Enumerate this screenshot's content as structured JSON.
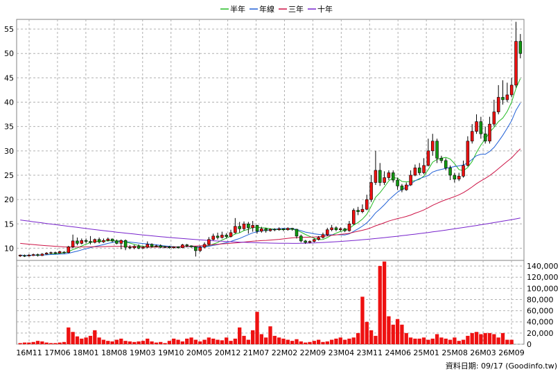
{
  "chart_data": {
    "type": "candlestick",
    "legend": [
      {
        "name": "半年",
        "color": "#22bb22"
      },
      {
        "name": "年線",
        "color": "#1f5fd6"
      },
      {
        "name": "三年",
        "color": "#cc1144"
      },
      {
        "name": "十年",
        "color": "#7722cc"
      }
    ],
    "x_ticks": [
      "16M11",
      "17M06",
      "18M01",
      "18M08",
      "19M03",
      "19M10",
      "20M05",
      "20M12",
      "21M07",
      "22M02",
      "22M09",
      "23M04",
      "23M11",
      "24M06",
      "25M01",
      "25M08",
      "26M03",
      "26M09"
    ],
    "price_axis": {
      "ticks": [
        10,
        15,
        20,
        25,
        30,
        35,
        40,
        45,
        50,
        55
      ],
      "ylim": [
        7.5,
        57
      ]
    },
    "volume_axis": {
      "ticks": [
        "0",
        "20,000",
        "40,000",
        "60,000",
        "80,000",
        "100,000",
        "120,000",
        "140,000"
      ],
      "ylim": [
        0,
        150000
      ]
    },
    "candles": [
      [
        8.4,
        8.6,
        8.2,
        8.7
      ],
      [
        8.5,
        8.4,
        8.2,
        8.7
      ],
      [
        8.4,
        8.6,
        8.3,
        8.8
      ],
      [
        8.5,
        8.7,
        8.4,
        8.9
      ],
      [
        8.7,
        8.5,
        8.3,
        8.9
      ],
      [
        8.5,
        8.8,
        8.4,
        9.0
      ],
      [
        8.8,
        9.0,
        8.7,
        9.2
      ],
      [
        9.0,
        9.1,
        8.8,
        9.3
      ],
      [
        9.1,
        9.0,
        8.8,
        9.3
      ],
      [
        9.0,
        9.3,
        8.9,
        9.5
      ],
      [
        9.2,
        9.1,
        8.9,
        9.4
      ],
      [
        9.1,
        10.3,
        9.0,
        10.5
      ],
      [
        10.3,
        11.5,
        10.0,
        12.8
      ],
      [
        11.5,
        11.0,
        10.6,
        12.2
      ],
      [
        11.0,
        11.6,
        10.8,
        12.0
      ],
      [
        11.6,
        11.4,
        11.0,
        12.0
      ],
      [
        11.4,
        11.2,
        10.8,
        12.5
      ],
      [
        11.2,
        11.8,
        11.0,
        12.0
      ],
      [
        11.8,
        11.3,
        11.0,
        12.2
      ],
      [
        11.3,
        11.6,
        11.1,
        12.0
      ],
      [
        11.6,
        11.9,
        11.4,
        12.2
      ],
      [
        11.9,
        11.5,
        11.2,
        12.0
      ],
      [
        11.5,
        11.0,
        10.8,
        11.8
      ],
      [
        11.0,
        11.6,
        9.8,
        11.8
      ],
      [
        11.6,
        10.2,
        9.6,
        11.8
      ],
      [
        10.2,
        10.1,
        9.8,
        10.6
      ],
      [
        10.1,
        10.4,
        9.8,
        10.7
      ],
      [
        10.4,
        10.0,
        9.8,
        10.8
      ],
      [
        10.0,
        10.2,
        9.9,
        10.4
      ],
      [
        10.2,
        10.8,
        10.0,
        11.4
      ],
      [
        10.8,
        10.4,
        10.1,
        11.0
      ],
      [
        10.4,
        10.5,
        10.2,
        10.7
      ],
      [
        10.5,
        10.2,
        10.0,
        10.8
      ],
      [
        10.2,
        10.3,
        10.0,
        10.5
      ],
      [
        10.3,
        10.1,
        9.9,
        10.5
      ],
      [
        10.1,
        10.3,
        9.9,
        10.4
      ],
      [
        10.3,
        10.1,
        9.9,
        10.4
      ],
      [
        10.1,
        10.7,
        10.0,
        10.9
      ],
      [
        10.7,
        10.5,
        10.2,
        10.9
      ],
      [
        10.5,
        10.3,
        10.1,
        10.6
      ],
      [
        10.3,
        9.5,
        8.3,
        10.4
      ],
      [
        9.5,
        10.2,
        9.2,
        10.5
      ],
      [
        10.2,
        10.8,
        10.0,
        11.2
      ],
      [
        10.8,
        11.8,
        10.6,
        12.3
      ],
      [
        11.8,
        12.5,
        11.6,
        13.0
      ],
      [
        12.5,
        12.2,
        11.8,
        13.2
      ],
      [
        12.2,
        12.7,
        12.0,
        13.4
      ],
      [
        12.7,
        12.4,
        12.0,
        13.1
      ],
      [
        12.4,
        13.2,
        12.2,
        13.8
      ],
      [
        13.2,
        14.5,
        13.0,
        16.2
      ],
      [
        14.5,
        14.0,
        13.2,
        15.4
      ],
      [
        14.0,
        15.0,
        13.6,
        15.5
      ],
      [
        15.0,
        14.2,
        13.0,
        15.4
      ],
      [
        14.2,
        14.7,
        13.4,
        15.6
      ],
      [
        14.7,
        13.5,
        13.0,
        14.8
      ],
      [
        13.5,
        14.0,
        13.2,
        14.4
      ],
      [
        14.0,
        13.6,
        13.2,
        14.2
      ],
      [
        13.6,
        13.9,
        13.4,
        14.1
      ],
      [
        13.9,
        13.8,
        13.5,
        14.1
      ],
      [
        13.8,
        14.0,
        13.6,
        14.3
      ],
      [
        14.0,
        13.8,
        13.5,
        14.1
      ],
      [
        13.8,
        14.1,
        13.6,
        14.3
      ],
      [
        14.1,
        13.9,
        13.6,
        14.2
      ],
      [
        13.9,
        12.5,
        12.0,
        14.0
      ],
      [
        12.5,
        11.5,
        11.2,
        12.8
      ],
      [
        11.5,
        11.2,
        10.9,
        11.7
      ],
      [
        11.2,
        11.4,
        11.0,
        11.6
      ],
      [
        11.4,
        11.8,
        11.2,
        12.0
      ],
      [
        11.8,
        12.2,
        11.6,
        12.5
      ],
      [
        12.2,
        12.8,
        12.0,
        13.2
      ],
      [
        12.8,
        13.8,
        12.5,
        14.2
      ],
      [
        13.8,
        14.2,
        13.5,
        14.8
      ],
      [
        14.2,
        13.8,
        13.5,
        14.5
      ],
      [
        13.8,
        14.0,
        13.5,
        14.3
      ],
      [
        14.0,
        13.6,
        13.3,
        14.2
      ],
      [
        13.6,
        15.0,
        13.4,
        15.6
      ],
      [
        15.0,
        17.8,
        14.8,
        18.2
      ],
      [
        17.8,
        17.5,
        16.8,
        18.5
      ],
      [
        17.5,
        18.0,
        17.2,
        19.0
      ],
      [
        18.0,
        20.0,
        17.8,
        21.0
      ],
      [
        20.0,
        23.5,
        19.5,
        25.0
      ],
      [
        23.5,
        26.0,
        23.0,
        30.0
      ],
      [
        26.0,
        23.5,
        22.8,
        27.5
      ],
      [
        23.5,
        24.5,
        23.0,
        25.8
      ],
      [
        24.5,
        25.5,
        24.0,
        26.0
      ],
      [
        25.5,
        24.0,
        23.5,
        26.0
      ],
      [
        24.0,
        22.8,
        22.0,
        24.5
      ],
      [
        22.8,
        22.0,
        21.5,
        23.2
      ],
      [
        22.0,
        23.0,
        21.8,
        23.5
      ],
      [
        23.0,
        25.0,
        22.8,
        26.0
      ],
      [
        25.0,
        26.5,
        24.8,
        27.2
      ],
      [
        26.5,
        25.5,
        25.0,
        27.5
      ],
      [
        25.5,
        27.0,
        25.2,
        28.5
      ],
      [
        27.0,
        30.0,
        26.8,
        32.5
      ],
      [
        30.0,
        32.0,
        29.0,
        33.5
      ],
      [
        32.0,
        28.5,
        27.5,
        32.5
      ],
      [
        28.5,
        28.0,
        27.5,
        29.0
      ],
      [
        28.0,
        26.5,
        26.0,
        28.5
      ],
      [
        26.5,
        25.0,
        24.0,
        27.0
      ],
      [
        25.0,
        24.2,
        23.5,
        25.5
      ],
      [
        24.2,
        24.8,
        23.8,
        25.5
      ],
      [
        24.8,
        27.0,
        24.5,
        28.0
      ],
      [
        27.0,
        32.0,
        26.8,
        33.0
      ],
      [
        32.0,
        34.0,
        31.5,
        35.5
      ],
      [
        34.0,
        36.0,
        33.5,
        37.5
      ],
      [
        36.0,
        33.5,
        32.5,
        37.0
      ],
      [
        33.5,
        32.0,
        31.5,
        35.0
      ],
      [
        32.0,
        35.5,
        31.5,
        37.0
      ],
      [
        35.5,
        38.0,
        35.0,
        40.5
      ],
      [
        38.0,
        41.0,
        37.5,
        43.5
      ],
      [
        41.0,
        40.5,
        39.5,
        44.5
      ],
      [
        40.5,
        41.5,
        40.0,
        44.0
      ],
      [
        41.5,
        43.5,
        41.0,
        45.0
      ],
      [
        43.5,
        52.5,
        43.0,
        56.5
      ],
      [
        52.5,
        50.0,
        49.0,
        54.0
      ]
    ],
    "volume_in_thousands": [
      2,
      3,
      3,
      4,
      6,
      5,
      3,
      2,
      2,
      3,
      4,
      30,
      22,
      14,
      10,
      12,
      15,
      25,
      12,
      8,
      6,
      5,
      8,
      10,
      6,
      5,
      4,
      5,
      6,
      10,
      5,
      3,
      4,
      2,
      6,
      10,
      8,
      5,
      10,
      12,
      8,
      5,
      8,
      12,
      10,
      8,
      7,
      12,
      6,
      10,
      30,
      15,
      8,
      25,
      58,
      18,
      12,
      32,
      15,
      12,
      10,
      8,
      6,
      9,
      5,
      3,
      4,
      6,
      8,
      4,
      5,
      8,
      10,
      12,
      8,
      10,
      12,
      20,
      85,
      40,
      25,
      15,
      140,
      148,
      50,
      35,
      45,
      35,
      20,
      12,
      10,
      10,
      12,
      8,
      10,
      18,
      12,
      10,
      8,
      12,
      6,
      8,
      15,
      20,
      22,
      18,
      20,
      20,
      18,
      12,
      20,
      8,
      8
    ]
  }
}
